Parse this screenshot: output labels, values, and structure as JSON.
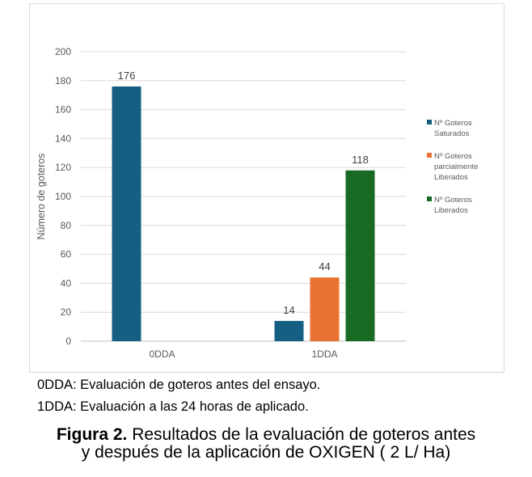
{
  "chart_data": {
    "type": "bar",
    "categories": [
      "0DDA",
      "1DDA"
    ],
    "series": [
      {
        "name": "Nº Goteros Saturados",
        "values": [
          176,
          14
        ],
        "color": "#156082"
      },
      {
        "name": "Nº Goteros parcialmente Liberados",
        "values": [
          null,
          44
        ],
        "color": "#E97132"
      },
      {
        "name": "Nº Goteros Liberados",
        "values": [
          null,
          118
        ],
        "color": "#196B24"
      }
    ],
    "ylabel": "Número de goteros",
    "ylim": [
      0,
      200
    ],
    "yticks": [
      0,
      20,
      40,
      60,
      80,
      100,
      120,
      140,
      160,
      180,
      200
    ],
    "grid": true,
    "legend": "right",
    "legend_lines": [
      [
        "Nº Goteros",
        "Saturados"
      ],
      [
        "Nº Goteros",
        "parcialmente",
        "Liberados"
      ],
      [
        "Nº Goteros",
        "Liberados"
      ]
    ]
  },
  "notes": [
    "0DDA: Evaluación de goteros antes del ensayo.",
    "1DDA: Evaluación a las 24 horas de aplicado."
  ],
  "caption": {
    "label": "Figura 2.",
    "line1": " Resultados de la evaluación de goteros antes",
    "line2": "y después de la aplicación de  OXIGEN ( 2 L/ Ha)"
  }
}
